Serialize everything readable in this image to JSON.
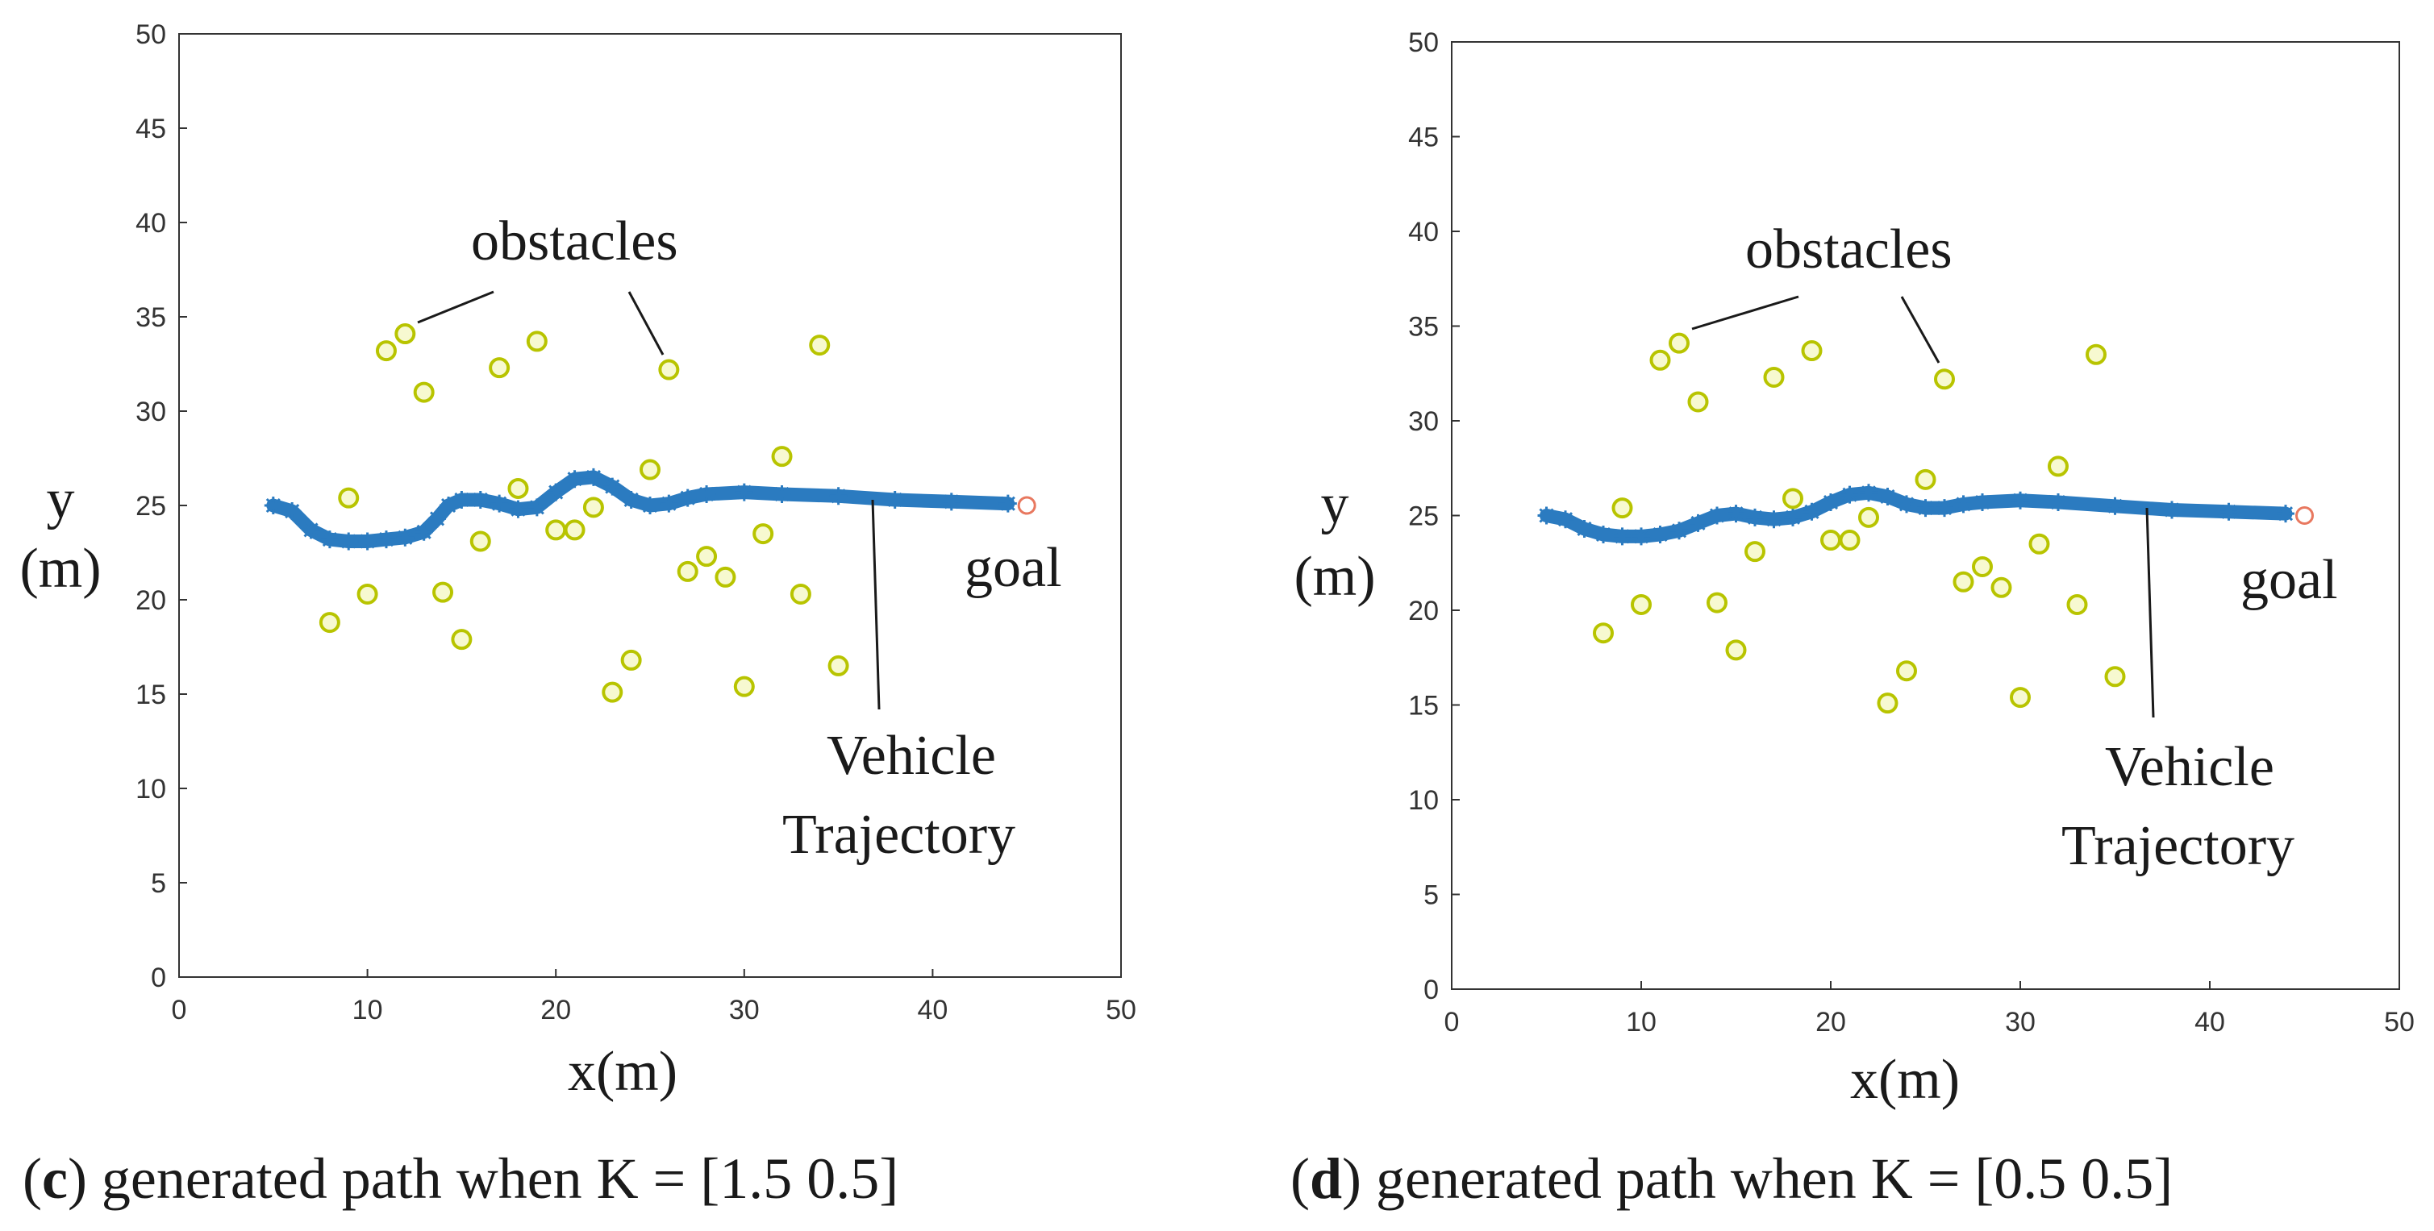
{
  "colors": {
    "trajectory": "#2b7bc0",
    "obstacle_edge": "#b8c400",
    "obstacle_fill": "#f7f9d0",
    "goal": "#e8785f",
    "axis": "#333333"
  },
  "chart_data": [
    {
      "type": "scatter",
      "panel_letter": "c",
      "caption": ") generated path when K = [1.5    0.5]",
      "caption_open": "(",
      "xlabel": "x(m)",
      "ylabel_line1": "y",
      "ylabel_line2": "(m)",
      "xlim": [
        0,
        50
      ],
      "ylim": [
        0,
        50
      ],
      "xticks": [
        0,
        10,
        20,
        30,
        40,
        50
      ],
      "yticks": [
        0,
        5,
        10,
        15,
        20,
        25,
        30,
        35,
        40,
        45,
        50
      ],
      "grid": false,
      "annotations": {
        "obstacles": "obstacles",
        "goal": "goal",
        "trajectory_line1": "Vehicle",
        "trajectory_line2": "Trajectory"
      },
      "obstacles": [
        [
          11,
          33.2
        ],
        [
          12,
          34.1
        ],
        [
          13,
          31.0
        ],
        [
          17,
          32.3
        ],
        [
          19,
          33.7
        ],
        [
          26,
          32.2
        ],
        [
          34,
          33.5
        ],
        [
          9,
          25.4
        ],
        [
          18,
          25.9
        ],
        [
          22,
          24.9
        ],
        [
          25,
          26.9
        ],
        [
          32,
          27.6
        ],
        [
          20,
          23.7
        ],
        [
          21,
          23.7
        ],
        [
          16,
          23.1
        ],
        [
          31,
          23.5
        ],
        [
          28,
          22.3
        ],
        [
          27,
          21.5
        ],
        [
          29,
          21.2
        ],
        [
          10,
          20.3
        ],
        [
          14,
          20.4
        ],
        [
          33,
          20.3
        ],
        [
          8,
          18.8
        ],
        [
          15,
          17.9
        ],
        [
          24,
          16.8
        ],
        [
          23,
          15.1
        ],
        [
          30,
          15.4
        ],
        [
          35,
          16.5
        ]
      ],
      "goal_point": [
        45,
        25
      ],
      "trajectory": [
        [
          5,
          25
        ],
        [
          6,
          24.7
        ],
        [
          7,
          23.7
        ],
        [
          8,
          23.2
        ],
        [
          9,
          23.1
        ],
        [
          10,
          23.1
        ],
        [
          11,
          23.2
        ],
        [
          12,
          23.3
        ],
        [
          13,
          23.6
        ],
        [
          13.7,
          24.3
        ],
        [
          14.3,
          25.0
        ],
        [
          15,
          25.3
        ],
        [
          16,
          25.3
        ],
        [
          17,
          25.1
        ],
        [
          18,
          24.8
        ],
        [
          19,
          24.9
        ],
        [
          20,
          25.7
        ],
        [
          21,
          26.4
        ],
        [
          22,
          26.5
        ],
        [
          23,
          26.0
        ],
        [
          24,
          25.3
        ],
        [
          25,
          25.0
        ],
        [
          26,
          25.1
        ],
        [
          27,
          25.4
        ],
        [
          28,
          25.6
        ],
        [
          30,
          25.7
        ],
        [
          32,
          25.6
        ],
        [
          35,
          25.5
        ],
        [
          38,
          25.3
        ],
        [
          41,
          25.2
        ],
        [
          44,
          25.1
        ]
      ]
    },
    {
      "type": "scatter",
      "panel_letter": "d",
      "caption": ") generated path when K = [0.5    0.5]",
      "caption_open": "(",
      "xlabel": "x(m)",
      "ylabel_line1": "y",
      "ylabel_line2": "(m)",
      "xlim": [
        0,
        50
      ],
      "ylim": [
        0,
        50
      ],
      "xticks": [
        0,
        10,
        20,
        30,
        40,
        50
      ],
      "yticks": [
        0,
        5,
        10,
        15,
        20,
        25,
        30,
        35,
        40,
        45,
        50
      ],
      "grid": false,
      "annotations": {
        "obstacles": "obstacles",
        "goal": "goal",
        "trajectory_line1": "Vehicle",
        "trajectory_line2": "Trajectory"
      },
      "obstacles": [
        [
          11,
          33.2
        ],
        [
          12,
          34.1
        ],
        [
          13,
          31.0
        ],
        [
          17,
          32.3
        ],
        [
          19,
          33.7
        ],
        [
          26,
          32.2
        ],
        [
          34,
          33.5
        ],
        [
          9,
          25.4
        ],
        [
          18,
          25.9
        ],
        [
          22,
          24.9
        ],
        [
          25,
          26.9
        ],
        [
          32,
          27.6
        ],
        [
          20,
          23.7
        ],
        [
          21,
          23.7
        ],
        [
          16,
          23.1
        ],
        [
          31,
          23.5
        ],
        [
          28,
          22.3
        ],
        [
          27,
          21.5
        ],
        [
          29,
          21.2
        ],
        [
          10,
          20.3
        ],
        [
          14,
          20.4
        ],
        [
          33,
          20.3
        ],
        [
          8,
          18.8
        ],
        [
          15,
          17.9
        ],
        [
          24,
          16.8
        ],
        [
          23,
          15.1
        ],
        [
          30,
          15.4
        ],
        [
          35,
          16.5
        ]
      ],
      "goal_point": [
        45,
        25
      ],
      "trajectory": [
        [
          5,
          25
        ],
        [
          6,
          24.8
        ],
        [
          7,
          24.3
        ],
        [
          8,
          24.0
        ],
        [
          9,
          23.9
        ],
        [
          10,
          23.9
        ],
        [
          11,
          24.0
        ],
        [
          12,
          24.2
        ],
        [
          13,
          24.6
        ],
        [
          14,
          25.0
        ],
        [
          15,
          25.1
        ],
        [
          16,
          24.9
        ],
        [
          17,
          24.8
        ],
        [
          18,
          24.9
        ],
        [
          19,
          25.2
        ],
        [
          20,
          25.7
        ],
        [
          21,
          26.1
        ],
        [
          22,
          26.2
        ],
        [
          23,
          26.0
        ],
        [
          24,
          25.6
        ],
        [
          25,
          25.4
        ],
        [
          26,
          25.4
        ],
        [
          27,
          25.6
        ],
        [
          28,
          25.7
        ],
        [
          30,
          25.8
        ],
        [
          32,
          25.7
        ],
        [
          35,
          25.5
        ],
        [
          38,
          25.3
        ],
        [
          41,
          25.2
        ],
        [
          44,
          25.1
        ]
      ]
    }
  ]
}
